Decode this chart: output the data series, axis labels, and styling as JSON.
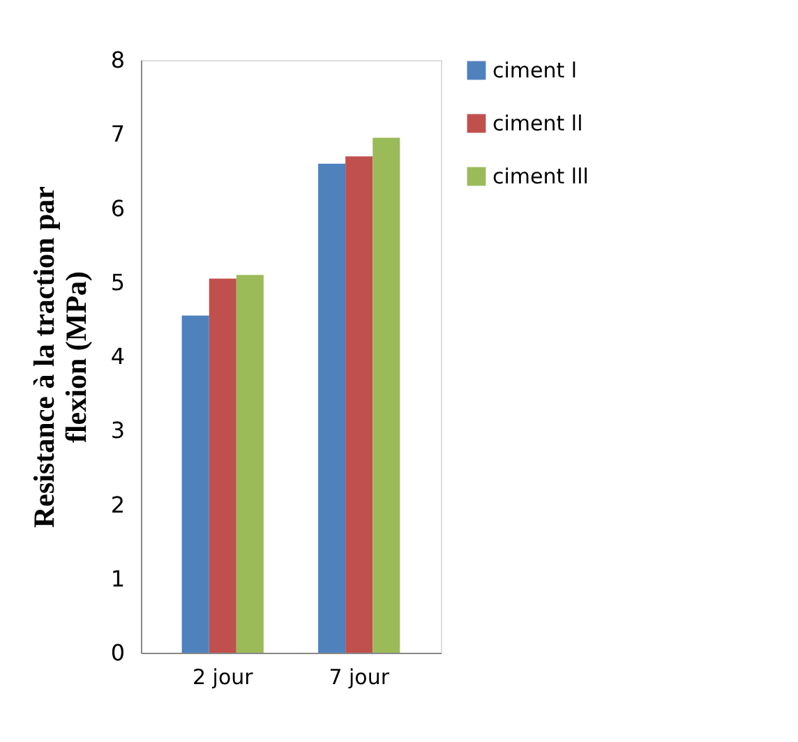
{
  "chart_data": {
    "type": "bar",
    "ylabel": "Resistance à la  traction par\nflexion (MPa)",
    "categories": [
      "2 jour",
      "7 jour"
    ],
    "series": [
      {
        "name": "ciment l",
        "color": "#4f81bd",
        "values": [
          4.55,
          6.6
        ]
      },
      {
        "name": "ciment ll",
        "color": "#c0504d",
        "values": [
          5.05,
          6.7
        ]
      },
      {
        "name": "ciment lll",
        "color": "#9bbb59",
        "values": [
          5.1,
          6.95
        ]
      }
    ],
    "ylim": [
      0,
      8
    ],
    "yticks": [
      0,
      1,
      2,
      3,
      4,
      5,
      6,
      7,
      8
    ],
    "grid": false,
    "legend": "right"
  }
}
